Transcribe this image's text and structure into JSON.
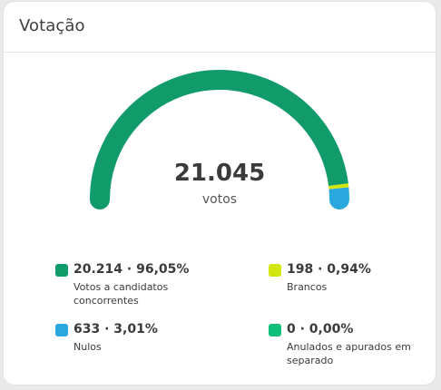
{
  "card": {
    "title": "Votação"
  },
  "total": {
    "value": "21.045",
    "label": "votos"
  },
  "colors": {
    "candidatos": "#129b6a",
    "brancos": "#d4e60f",
    "nulos": "#29a8e0",
    "anulados": "#0cc07c",
    "track": "#e6e6e6"
  },
  "chart_data": {
    "type": "gauge",
    "total": 21045,
    "series": [
      {
        "name": "Votos a candidatos concorrentes",
        "value": 20214,
        "percent": 96.05
      },
      {
        "name": "Brancos",
        "value": 198,
        "percent": 0.94
      },
      {
        "name": "Nulos",
        "value": 633,
        "percent": 3.01
      },
      {
        "name": "Anulados e apurados em separado",
        "value": 0,
        "percent": 0.0
      }
    ]
  },
  "legend": [
    {
      "value": "20.214 · 96,05%",
      "label": "Votos a candidatos concorrentes",
      "color": "#129b6a"
    },
    {
      "value": "198 · 0,94%",
      "label": "Brancos",
      "color": "#d4e60f"
    },
    {
      "value": "633 · 3,01%",
      "label": "Nulos",
      "color": "#29a8e0"
    },
    {
      "value": "0 · 0,00%",
      "label": "Anulados e apurados em separado",
      "color": "#0cc07c"
    }
  ]
}
